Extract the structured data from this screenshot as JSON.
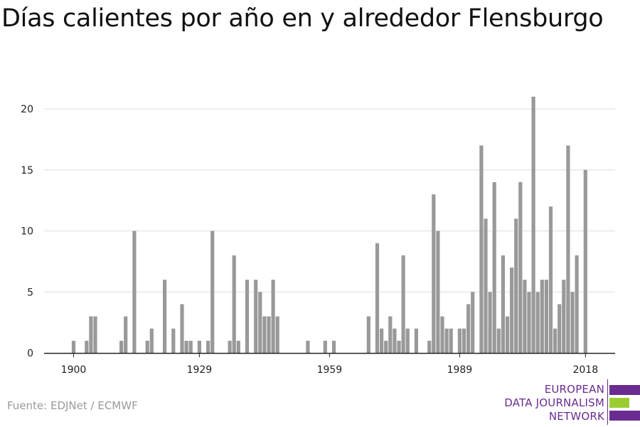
{
  "title": "Días calientes por año en y alrededor Flensburgo",
  "source": "Fuente: EDJNet / ECMWF",
  "logo": {
    "line1": "EUROPEAN",
    "line2": "DATA JOURNALISM",
    "line3": "NETWORK",
    "colors": {
      "purple": "#6a2c91",
      "green": "#9acd32"
    }
  },
  "chart_data": {
    "type": "bar",
    "title": "Días calientes por año en y alrededor Flensburgo",
    "xlabel": "",
    "ylabel": "",
    "x_ticks": [
      "1900",
      "1929",
      "1959",
      "1989",
      "2018"
    ],
    "y_ticks": [
      0,
      5,
      10,
      15,
      20
    ],
    "xlim": [
      1896,
      2024
    ],
    "ylim": [
      0,
      22
    ],
    "grid": true,
    "bar_color": "#999999",
    "x": [
      1900,
      1901,
      1902,
      1903,
      1904,
      1905,
      1906,
      1907,
      1908,
      1909,
      1910,
      1911,
      1912,
      1913,
      1914,
      1915,
      1916,
      1917,
      1918,
      1919,
      1920,
      1921,
      1922,
      1923,
      1924,
      1925,
      1926,
      1927,
      1928,
      1929,
      1930,
      1931,
      1932,
      1933,
      1934,
      1935,
      1936,
      1937,
      1938,
      1939,
      1940,
      1941,
      1942,
      1943,
      1944,
      1945,
      1946,
      1947,
      1948,
      1949,
      1950,
      1951,
      1952,
      1953,
      1954,
      1955,
      1956,
      1957,
      1958,
      1959,
      1960,
      1961,
      1962,
      1963,
      1964,
      1965,
      1966,
      1967,
      1968,
      1969,
      1970,
      1971,
      1972,
      1973,
      1974,
      1975,
      1976,
      1977,
      1978,
      1979,
      1980,
      1981,
      1982,
      1983,
      1984,
      1985,
      1986,
      1987,
      1988,
      1989,
      1990,
      1991,
      1992,
      1993,
      1994,
      1995,
      1996,
      1997,
      1998,
      1999,
      2000,
      2001,
      2002,
      2003,
      2004,
      2005,
      2006,
      2007,
      2008,
      2009,
      2010,
      2011,
      2012,
      2013,
      2014,
      2015,
      2016,
      2017,
      2018
    ],
    "values": [
      1,
      0,
      0,
      1,
      3,
      3,
      0,
      0,
      0,
      0,
      0,
      1,
      3,
      0,
      10,
      0,
      0,
      1,
      2,
      0,
      0,
      6,
      0,
      2,
      0,
      4,
      1,
      1,
      0,
      1,
      0,
      1,
      10,
      0,
      0,
      0,
      1,
      8,
      1,
      0,
      6,
      0,
      6,
      5,
      3,
      3,
      6,
      3,
      0,
      0,
      0,
      0,
      0,
      0,
      1,
      0,
      0,
      0,
      1,
      0,
      1,
      0,
      0,
      0,
      0,
      0,
      0,
      0,
      3,
      0,
      9,
      2,
      1,
      3,
      2,
      1,
      8,
      2,
      0,
      2,
      0,
      0,
      1,
      13,
      10,
      3,
      2,
      2,
      0,
      2,
      2,
      4,
      5,
      0,
      17,
      11,
      5,
      14,
      2,
      8,
      3,
      7,
      11,
      14,
      6,
      5,
      21,
      5,
      6,
      6,
      12,
      2,
      4,
      6,
      17,
      5,
      8,
      0,
      15
    ]
  }
}
